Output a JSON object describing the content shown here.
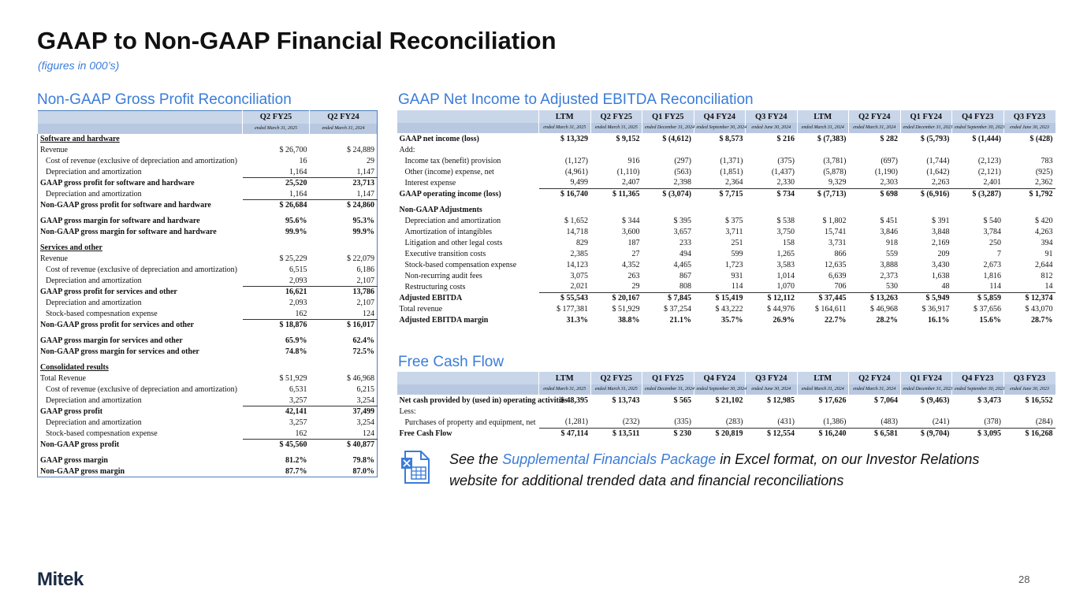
{
  "header": {
    "title": "GAAP to Non-GAAP Financial Reconciliation",
    "subtitle": "(figures in 000’s)"
  },
  "left": {
    "title": "Non-GAAP Gross Profit Reconciliation",
    "columns": [
      "Q2 FY25",
      "Q2 FY24"
    ],
    "subcolumns": [
      "ended March 31, 2025",
      "ended March 31, 2024"
    ],
    "rows": [
      [
        "Software and hardware"
      ],
      [
        "Revenue",
        "$ 26,700",
        "$ 24,889"
      ],
      [
        "Cost of revenue (exclusive of depreciation and amortization)",
        "16",
        "29"
      ],
      [
        "Depreciation and amortization",
        "1,164",
        "1,147"
      ],
      [
        "GAAP gross profit for software and hardware",
        "25,520",
        "23,713"
      ],
      [
        "Depreciation and amortization",
        "1,164",
        "1,147"
      ],
      [
        "Non-GAAP gross profit for software and hardware",
        "$ 26,684",
        "$ 24,860"
      ],
      [
        "GAAP gross margin for software and hardware",
        "95.6%",
        "95.3%"
      ],
      [
        "Non-GAAP gross margin for software and hardware",
        "99.9%",
        "99.9%"
      ],
      [
        "Services and other"
      ],
      [
        "Revenue",
        "$ 25,229",
        "$ 22,079"
      ],
      [
        "Cost of revenue (exclusive of depreciation and amortization)",
        "6,515",
        "6,186"
      ],
      [
        "Depreciation and amortization",
        "2,093",
        "2,107"
      ],
      [
        "GAAP gross profit for services and other",
        "16,621",
        "13,786"
      ],
      [
        "Depreciation and amortization",
        "2,093",
        "2,107"
      ],
      [
        "Stock-based compesnation expense",
        "162",
        "124"
      ],
      [
        "Non-GAAP gross profit for services and other",
        "$ 18,876",
        "$ 16,017"
      ],
      [
        "GAAP gross margin for services and other",
        "65.9%",
        "62.4%"
      ],
      [
        "Non-GAAP gross margin for services and other",
        "74.8%",
        "72.5%"
      ],
      [
        "Consolidated results"
      ],
      [
        "Total Revenue",
        "$ 51,929",
        "$ 46,968"
      ],
      [
        "Cost of revenue (exclusive of depreciation and amortization)",
        "6,531",
        "6,215"
      ],
      [
        "Depreciation and amortization",
        "3,257",
        "3,254"
      ],
      [
        "GAAP gross profit",
        "42,141",
        "37,499"
      ],
      [
        "Depreciation and amortization",
        "3,257",
        "3,254"
      ],
      [
        "Stock-based compesnation expense",
        "162",
        "124"
      ],
      [
        "Non-GAAP gross profit",
        "$ 45,560",
        "$ 40,877"
      ],
      [
        "GAAP gross margin",
        "81.2%",
        "79.8%"
      ],
      [
        "Non-GAAP gross margin",
        "87.7%",
        "87.0%"
      ]
    ]
  },
  "ebitda": {
    "title": "GAAP Net Income to Adjusted EBITDA Reconciliation",
    "columns": [
      "LTM",
      "Q2 FY25",
      "Q1 FY25",
      "Q4 FY24",
      "Q3 FY24",
      "LTM",
      "Q2 FY24",
      "Q1 FY24",
      "Q4 FY23",
      "Q3 FY23"
    ],
    "subcolumns": [
      "ended March 31, 2025",
      "ended March 31, 2025",
      "ended December 31, 2024",
      "ended September 30, 2024",
      "ended June 30, 2024",
      "ended March 31, 2024",
      "ended March 31, 2024",
      "ended December 31, 2023",
      "ended September 30, 2023",
      "ended June 30, 2023"
    ],
    "rows": [
      [
        "GAAP net income (loss)",
        "$ 13,329",
        "$ 9,152",
        "$ (4,612)",
        "$ 8,573",
        "$ 216",
        "$ (7,383)",
        "$ 282",
        "$ (5,793)",
        "$ (1,444)",
        "$ (428)"
      ],
      [
        "Add:"
      ],
      [
        "Income tax (benefit) provision",
        "(1,127)",
        "916",
        "(297)",
        "(1,371)",
        "(375)",
        "(3,781)",
        "(697)",
        "(1,744)",
        "(2,123)",
        "783"
      ],
      [
        "Other (income) expense, net",
        "(4,961)",
        "(1,110)",
        "(563)",
        "(1,851)",
        "(1,437)",
        "(5,878)",
        "(1,190)",
        "(1,642)",
        "(2,121)",
        "(925)"
      ],
      [
        "Interest expense",
        "9,499",
        "2,407",
        "2,398",
        "2,364",
        "2,330",
        "9,329",
        "2,303",
        "2,263",
        "2,401",
        "2,362"
      ],
      [
        "GAAP operating income (loss)",
        "$ 16,740",
        "$ 11,365",
        "$ (3,074)",
        "$ 7,715",
        "$ 734",
        "$ (7,713)",
        "$ 698",
        "$ (6,916)",
        "$ (3,287)",
        "$ 1,792"
      ],
      [
        "Non-GAAP Adjustments"
      ],
      [
        "Depreciation and amortization",
        "$ 1,652",
        "$ 344",
        "$ 395",
        "$ 375",
        "$ 538",
        "$ 1,802",
        "$ 451",
        "$ 391",
        "$ 540",
        "$ 420"
      ],
      [
        "Amortization of intangibles",
        "14,718",
        "3,600",
        "3,657",
        "3,711",
        "3,750",
        "15,741",
        "3,846",
        "3,848",
        "3,784",
        "4,263"
      ],
      [
        "Litigation and other legal costs",
        "829",
        "187",
        "233",
        "251",
        "158",
        "3,731",
        "918",
        "2,169",
        "250",
        "394"
      ],
      [
        "Executive transition costs",
        "2,385",
        "27",
        "494",
        "599",
        "1,265",
        "866",
        "559",
        "209",
        "7",
        "91"
      ],
      [
        "Stock-based compensation expense",
        "14,123",
        "4,352",
        "4,465",
        "1,723",
        "3,583",
        "12,635",
        "3,888",
        "3,430",
        "2,673",
        "2,644"
      ],
      [
        "Non-recurring audit fees",
        "3,075",
        "263",
        "867",
        "931",
        "1,014",
        "6,639",
        "2,373",
        "1,638",
        "1,816",
        "812"
      ],
      [
        "Restructuring costs",
        "2,021",
        "29",
        "808",
        "114",
        "1,070",
        "706",
        "530",
        "48",
        "114",
        "14"
      ],
      [
        "Adjusted EBITDA",
        "$ 55,543",
        "$ 20,167",
        "$ 7,845",
        "$ 15,419",
        "$ 12,112",
        "$ 37,445",
        "$ 13,263",
        "$ 5,949",
        "$ 5,859",
        "$ 12,374"
      ],
      [
        "Total revenue",
        "$ 177,381",
        "$ 51,929",
        "$ 37,254",
        "$ 43,222",
        "$ 44,976",
        "$ 164,611",
        "$ 46,968",
        "$ 36,917",
        "$ 37,656",
        "$ 43,070"
      ],
      [
        "Adjusted EBITDA margin",
        "31.3%",
        "38.8%",
        "21.1%",
        "35.7%",
        "26.9%",
        "22.7%",
        "28.2%",
        "16.1%",
        "15.6%",
        "28.7%"
      ]
    ]
  },
  "fcf": {
    "title": "Free Cash Flow",
    "columns": [
      "LTM",
      "Q2 FY25",
      "Q1 FY25",
      "Q4 FY24",
      "Q3 FY24",
      "LTM",
      "Q2 FY24",
      "Q1 FY24",
      "Q4 FY23",
      "Q3 FY23"
    ],
    "subcolumns": [
      "ended March 31, 2025",
      "ended March 31, 2025",
      "ended December 31, 2024",
      "ended September 30, 2024",
      "ended June 30, 2024",
      "ended March 31, 2024",
      "ended March 31, 2024",
      "ended December 31, 2023",
      "ended September 30, 2023",
      "ended June 30, 2023"
    ],
    "rows": [
      [
        "Net cash provided by (used in) operating activities",
        "$ 48,395",
        "$ 13,743",
        "$ 565",
        "$ 21,102",
        "$ 12,985",
        "$ 17,626",
        "$ 7,064",
        "$ (9,463)",
        "$ 3,473",
        "$ 16,552"
      ],
      [
        "Less:"
      ],
      [
        "Purchases of property and equipment, net",
        "(1,281)",
        "(232)",
        "(335)",
        "(283)",
        "(431)",
        "(1,386)",
        "(483)",
        "(241)",
        "(378)",
        "(284)"
      ],
      [
        "Free Cash Flow",
        "$ 47,114",
        "$ 13,511",
        "$ 230",
        "$ 20,819",
        "$ 12,554",
        "$ 16,240",
        "$ 6,581",
        "$ (9,704)",
        "$ 3,095",
        "$ 16,268"
      ]
    ]
  },
  "note": {
    "before": "See the ",
    "link": "Supplemental Financials Package",
    "after": " in Excel format, on our Investor Relations website for additional trended data and financial reconciliations"
  },
  "footer": {
    "logo": "Mitek",
    "page": "28"
  }
}
